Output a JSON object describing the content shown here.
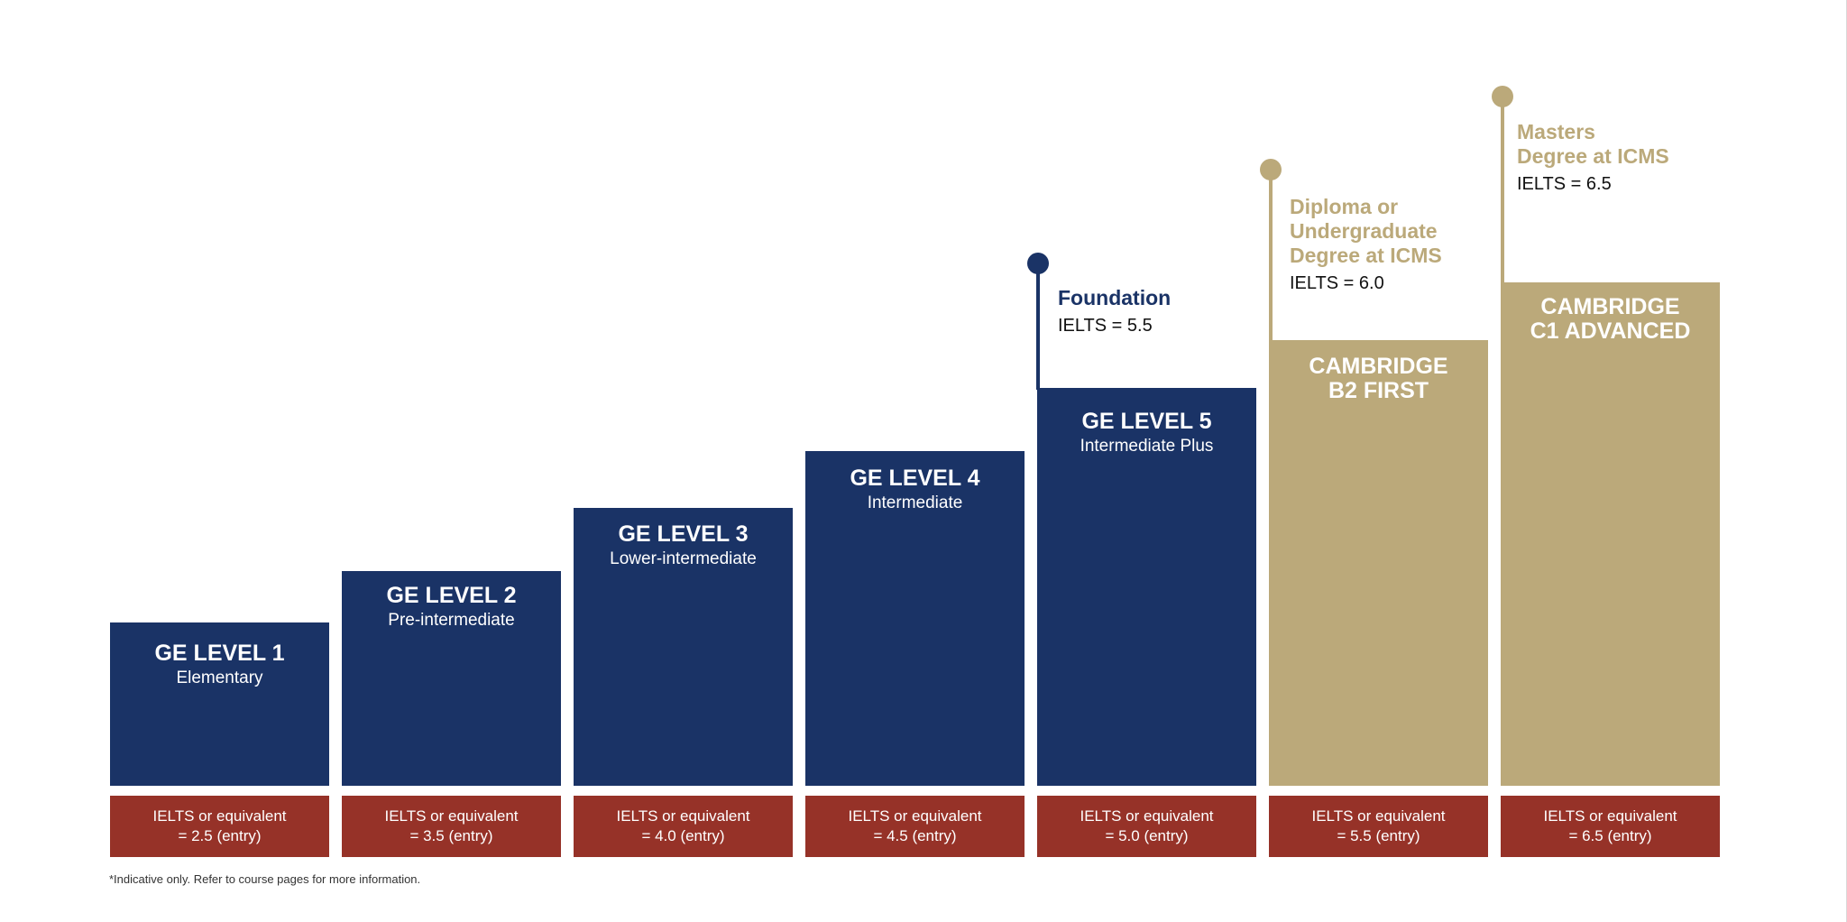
{
  "colors": {
    "navy": "#1a3366",
    "gold": "#bba97a",
    "red": "#963228"
  },
  "levels": [
    {
      "title": "GE LEVEL 1",
      "subtitle": "Elementary",
      "entry": "IELTS or equivalent\n= 2.5 (entry)"
    },
    {
      "title": "GE LEVEL 2",
      "subtitle": "Pre-intermediate",
      "entry": "IELTS or equivalent\n= 3.5 (entry)"
    },
    {
      "title": "GE LEVEL 3",
      "subtitle": "Lower-intermediate",
      "entry": "IELTS or equivalent\n= 4.0 (entry)"
    },
    {
      "title": "GE LEVEL 4",
      "subtitle": "Intermediate",
      "entry": "IELTS or equivalent\n= 4.5 (entry)"
    },
    {
      "title": "GE LEVEL 5",
      "subtitle": "Intermediate Plus",
      "entry": "IELTS or equivalent\n= 5.0 (entry)"
    },
    {
      "title": "CAMBRIDGE\nB2 FIRST",
      "subtitle": "",
      "entry": "IELTS or equivalent\n= 5.5 (entry)"
    },
    {
      "title": "CAMBRIDGE\nC1 ADVANCED",
      "subtitle": "",
      "entry": "IELTS or equivalent\n= 6.5 (entry)"
    }
  ],
  "outcomes": [
    {
      "title": "Foundation",
      "ielts": "IELTS = 5.5"
    },
    {
      "title": "Diploma or\nUndergraduate\nDegree at ICMS",
      "ielts": "IELTS = 6.0"
    },
    {
      "title": "Masters\nDegree at ICMS",
      "ielts": "IELTS = 6.5"
    }
  ],
  "footnote": "*Indicative only. Refer to course pages for more information."
}
